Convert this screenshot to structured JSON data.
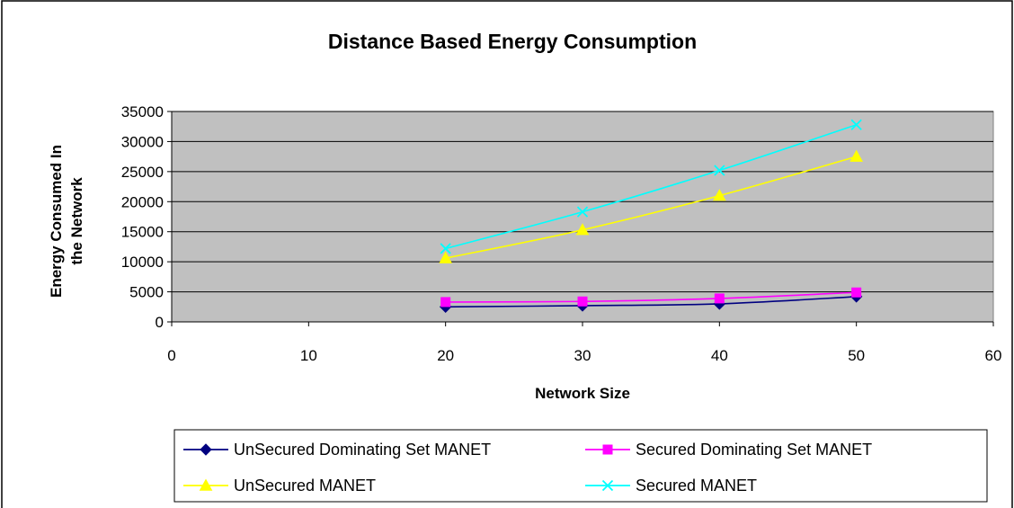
{
  "chart_data": {
    "type": "line",
    "title": "Distance Based Energy Consumption",
    "xlabel": "Network Size",
    "ylabel": [
      "Energy Consumed In",
      "the Network"
    ],
    "xlim": [
      0,
      60
    ],
    "ylim": [
      0,
      35000
    ],
    "x_ticks": [
      0,
      10,
      20,
      30,
      40,
      50,
      60
    ],
    "y_ticks": [
      0,
      5000,
      10000,
      15000,
      20000,
      25000,
      30000,
      35000
    ],
    "grid": "horizontal",
    "plot_background": "#c0c0c0",
    "legend_position": "bottom",
    "x": [
      20,
      30,
      40,
      50
    ],
    "series": [
      {
        "name": "UnSecured Dominating Set MANET",
        "values": [
          2500,
          2700,
          3000,
          4200
        ],
        "color": "#000080",
        "marker": "diamond"
      },
      {
        "name": "Secured Dominating Set MANET",
        "values": [
          3300,
          3400,
          3900,
          4900
        ],
        "color": "#ff00ff",
        "marker": "square"
      },
      {
        "name": "UnSecured MANET",
        "values": [
          10600,
          15300,
          21000,
          27500
        ],
        "color": "#ffff00",
        "marker": "triangle"
      },
      {
        "name": "Secured MANET",
        "values": [
          12200,
          18300,
          25200,
          32800
        ],
        "color": "#00ffff",
        "marker": "x"
      }
    ]
  }
}
